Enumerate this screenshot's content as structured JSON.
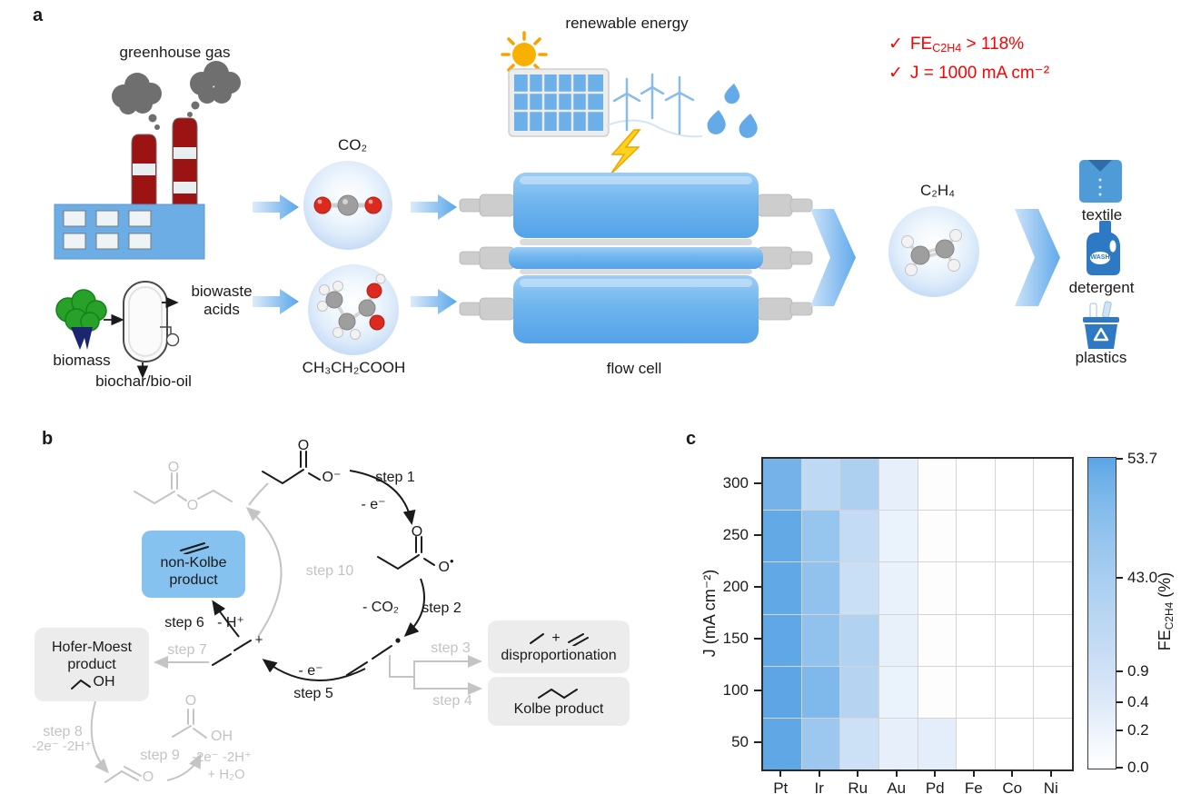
{
  "figure": {
    "panel_a_label": "a",
    "panel_b_label": "b",
    "panel_c_label": "c"
  },
  "panel_a": {
    "greenhouse_gas": "greenhouse gas",
    "biomass": "biomass",
    "biowaste_line1": "biowaste",
    "biowaste_line2": "acids",
    "biochar": "biochar/bio-oil",
    "co2": "CO₂",
    "acid": "CH₃CH₂COOH",
    "renewable_energy": "renewable energy",
    "flow_cell": "flow cell",
    "c2h4": "C₂H₄",
    "textile": "textile",
    "detergent": "detergent",
    "detergent_wash": "WASH",
    "plastics": "plastics",
    "highlight_check": "✓",
    "highlight_fe_prefix": "FE",
    "highlight_fe_sub": "C2H4",
    "highlight_fe_value": "> 118%",
    "highlight_current": "J = 1000 mA cm⁻²"
  },
  "panel_b": {
    "steps": {
      "s1": "step 1",
      "s2": "step 2",
      "s3": "step 3",
      "s4": "step 4",
      "s5": "step 5",
      "s6": "step 6",
      "s7": "step 7",
      "s8": "step 8",
      "s9": "step 9",
      "s10": "step 10"
    },
    "loss": {
      "e1": "- e⁻",
      "co2": "- CO₂",
      "e5": "- e⁻",
      "h": "- H⁺",
      "s8": "-2e⁻ -2H⁺",
      "s9": "-2e⁻ -2H⁺",
      "s9b": "+ H₂O"
    },
    "boxes": {
      "non_kolbe_1": "non-Kolbe",
      "non_kolbe_2": "product",
      "hofer_1": "Hofer-Moest",
      "hofer_2": "product",
      "dispro": "disproportionation",
      "kolbe": "Kolbe product"
    },
    "atoms": {
      "o": "O",
      "o_minus": "O⁻",
      "dot": "•",
      "oh": "OH",
      "plus": "+"
    }
  },
  "chart_data": {
    "type": "heatmap",
    "x_categories": [
      "Pt",
      "Ir",
      "Ru",
      "Au",
      "Pd",
      "Fe",
      "Co",
      "Ni"
    ],
    "y_categories": [
      "300",
      "250",
      "200",
      "150",
      "100",
      "50"
    ],
    "ylabel": "J (mA cm⁻²)",
    "colorbar_label_prefix": "FE",
    "colorbar_label_sub": "C2H4",
    "colorbar_label_suffix": " (%)",
    "colorbar_ticks": [
      {
        "label": "53.7",
        "pos": 0.5
      },
      {
        "label": "43.0",
        "pos": 39
      },
      {
        "label": "0.9",
        "pos": 69
      },
      {
        "label": "0.4",
        "pos": 79
      },
      {
        "label": "0.2",
        "pos": 88
      },
      {
        "label": "0.0",
        "pos": 100
      }
    ],
    "colorbar_stops": [
      {
        "color": "#5aa3e6",
        "pos": 0
      },
      {
        "color": "#6dafe8",
        "pos": 6
      },
      {
        "color": "#7cb8ea",
        "pos": 13
      },
      {
        "color": "#8ec1ed",
        "pos": 22
      },
      {
        "color": "#9bc7ee",
        "pos": 30
      },
      {
        "color": "#aacff1",
        "pos": 40
      },
      {
        "color": "#b7d5f2",
        "pos": 50
      },
      {
        "color": "#c4dbf4",
        "pos": 60
      },
      {
        "color": "#d1e2f6",
        "pos": 70
      },
      {
        "color": "#dde9f8",
        "pos": 78
      },
      {
        "color": "#e9f1fb",
        "pos": 86
      },
      {
        "color": "#f5f9fd",
        "pos": 93
      },
      {
        "color": "#ffffff",
        "pos": 100
      }
    ],
    "values": [
      [
        46.0,
        18.0,
        25.0,
        2.5,
        0.1,
        0.0,
        0.0,
        0.0
      ],
      [
        52.0,
        37.0,
        16.0,
        2.0,
        0.1,
        0.0,
        0.0,
        0.0
      ],
      [
        52.5,
        40.0,
        13.0,
        2.2,
        0.1,
        0.0,
        0.0,
        0.0
      ],
      [
        53.0,
        39.0,
        23.0,
        2.3,
        0.1,
        0.0,
        0.0,
        0.0
      ],
      [
        53.7,
        45.0,
        21.0,
        2.0,
        0.1,
        0.0,
        0.0,
        0.0
      ],
      [
        53.0,
        35.0,
        12.0,
        2.8,
        0.9,
        0.0,
        0.0,
        0.0
      ]
    ],
    "cell_colors": [
      [
        "#74b2e9",
        "#bed9f3",
        "#aed0f0",
        "#e7f0fa",
        "#fdfdfe",
        "#ffffff",
        "#ffffff",
        "#ffffff"
      ],
      [
        "#62a9e6",
        "#96c5ee",
        "#c3dbf4",
        "#eaf2fb",
        "#fdfdfe",
        "#ffffff",
        "#ffffff",
        "#ffffff"
      ],
      [
        "#61a8e6",
        "#90c2ed",
        "#c9dff5",
        "#e9f1fa",
        "#fdfdfe",
        "#ffffff",
        "#ffffff",
        "#ffffff"
      ],
      [
        "#5fa7e6",
        "#91c2ed",
        "#b2d2f1",
        "#e8f0fa",
        "#fdfdfe",
        "#ffffff",
        "#ffffff",
        "#ffffff"
      ],
      [
        "#5da5e5",
        "#7fb9eb",
        "#b6d4f2",
        "#eaf2fb",
        "#fdfdfe",
        "#ffffff",
        "#ffffff",
        "#ffffff"
      ],
      [
        "#60a7e6",
        "#9cc8ef",
        "#cde1f6",
        "#e6effa",
        "#e4eefa",
        "#ffffff",
        "#ffffff",
        "#ffffff"
      ]
    ]
  }
}
